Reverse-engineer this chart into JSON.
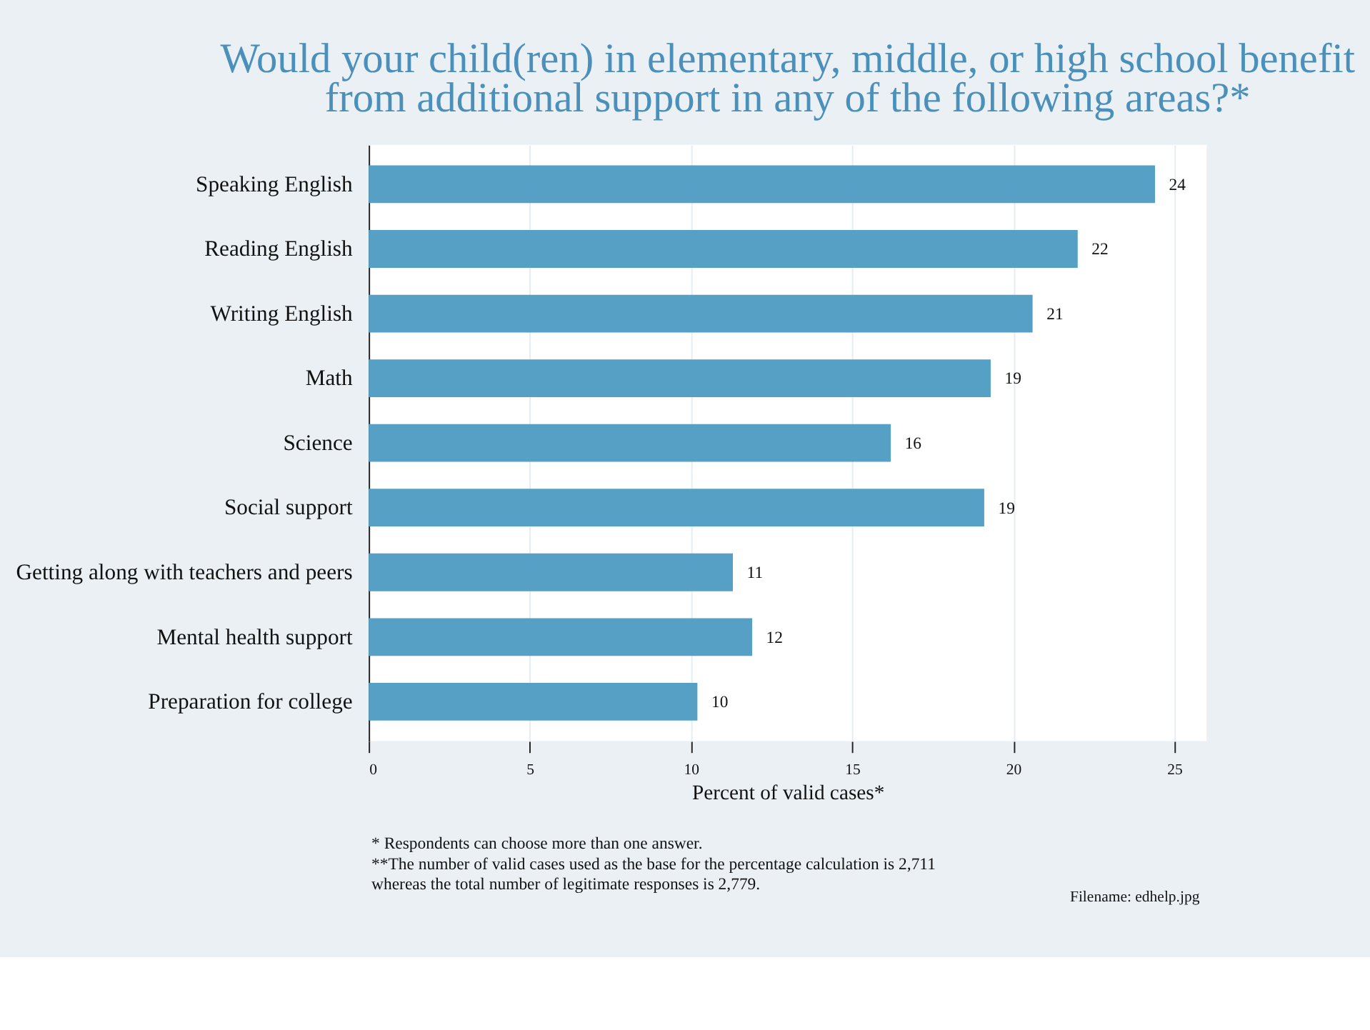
{
  "chart_data": {
    "type": "bar",
    "orientation": "horizontal",
    "title": "Would your child(ren) in elementary, middle, or high school benefit from additional support in any of the following areas?*",
    "xlabel": "Percent of valid cases*",
    "categories": [
      "Speaking English",
      "Reading English",
      "Writing English",
      "Math",
      "Science",
      "Social support",
      "Getting along with teachers and peers",
      "Mental health support",
      "Preparation for college"
    ],
    "values": [
      24.4,
      22.0,
      20.6,
      19.3,
      16.2,
      19.1,
      11.3,
      11.9,
      10.2
    ],
    "value_labels": [
      "24",
      "22",
      "21",
      "19",
      "16",
      "19",
      "11",
      "12",
      "10"
    ],
    "color": "#56a0c6",
    "xlim": [
      0,
      26
    ],
    "xticks": [
      0,
      5,
      10,
      15,
      20,
      25
    ],
    "grid": "x",
    "annotations": [
      "*  Respondents can choose more than one answer.",
      "**The number of valid cases used as the base for the percentage calculation is  2,711 whereas the total number of legitimate responses is 2,779.",
      "Filename: edhelp.jpg"
    ]
  }
}
